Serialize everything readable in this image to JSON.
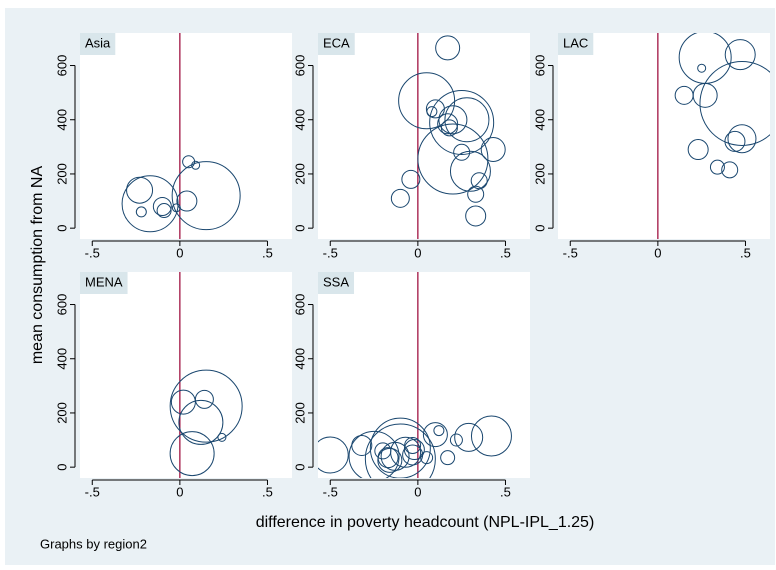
{
  "ylabel": "mean consumption from NA",
  "xlabel": "difference in poverty headcount (NPL-IPL_1.25)",
  "note": "Graphs by region2",
  "chart_data": [
    {
      "type": "scatter",
      "title": "Asia",
      "x": [
        -0.23,
        -0.22,
        -0.1,
        -0.09,
        -0.17,
        -0.02,
        0.04,
        0.15,
        0.05,
        0.09
      ],
      "y": [
        140,
        60,
        80,
        65,
        90,
        75,
        100,
        120,
        245,
        232
      ],
      "sizes": [
        169,
        25,
        81,
        49,
        784,
        16,
        100,
        1156,
        36,
        16
      ],
      "color": "#1a476f",
      "xline": 0,
      "xline_color": "#990033",
      "xlim": [
        -0.57,
        0.64
      ],
      "ylim": [
        -40,
        720
      ],
      "xticks": [
        {
          "value": -0.5,
          "label": "-.5"
        },
        0,
        {
          "value": 0.5,
          "label": ".5"
        }
      ],
      "yticks": [
        0,
        200,
        400,
        600
      ]
    },
    {
      "type": "scatter",
      "title": "ECA",
      "x": [
        0.05,
        0.17,
        0.1,
        0.08,
        0.17,
        0.18,
        0.2,
        0.25,
        0.28,
        0.2,
        0.25,
        0.3,
        0.43,
        0.35,
        0.33,
        0.33,
        -0.04,
        -0.1
      ],
      "y": [
        470,
        665,
        440,
        430,
        385,
        370,
        400,
        390,
        400,
        255,
        280,
        210,
        290,
        175,
        125,
        45,
        180,
        110
      ],
      "sizes": [
        784,
        144,
        81,
        25,
        100,
        64,
        196,
        1024,
        484,
        1225,
        64,
        400,
        144,
        64,
        64,
        100,
        81,
        81
      ],
      "color": "#1a476f",
      "xline": 0,
      "xline_color": "#990033",
      "xlim": [
        -0.57,
        0.64
      ],
      "ylim": [
        -40,
        720
      ],
      "xticks": [
        {
          "value": -0.5,
          "label": "-.5"
        },
        0,
        {
          "value": 0.5,
          "label": ".5"
        }
      ],
      "yticks": [
        0,
        200,
        400,
        600
      ]
    },
    {
      "type": "scatter",
      "title": "LAC",
      "x": [
        0.27,
        0.47,
        0.25,
        0.15,
        0.27,
        0.48,
        0.48,
        0.44,
        0.23,
        0.34,
        0.41
      ],
      "y": [
        630,
        640,
        590,
        490,
        490,
        460,
        330,
        320,
        290,
        225,
        215
      ],
      "sizes": [
        676,
        225,
        16,
        81,
        144,
        1764,
        196,
        100,
        100,
        49,
        64
      ],
      "color": "#1a476f",
      "xline": 0,
      "xline_color": "#990033",
      "xlim": [
        -0.57,
        0.64
      ],
      "ylim": [
        -40,
        720
      ],
      "xticks": [
        {
          "value": -0.5,
          "label": "-.5"
        },
        0,
        {
          "value": 0.5,
          "label": ".5"
        }
      ],
      "yticks": [
        0,
        200,
        400,
        600
      ]
    },
    {
      "type": "scatter",
      "title": "MENA",
      "x": [
        0.02,
        0.14,
        0.15,
        0.12,
        0.07,
        0.24
      ],
      "y": [
        240,
        250,
        225,
        165,
        50,
        110
      ],
      "sizes": [
        144,
        81,
        1296,
        484,
        484,
        16
      ],
      "color": "#1a476f",
      "xline": 0,
      "xline_color": "#990033",
      "xlim": [
        -0.57,
        0.64
      ],
      "ylim": [
        -40,
        720
      ],
      "xticks": [
        {
          "value": -0.5,
          "label": "-.5"
        },
        0,
        {
          "value": 0.5,
          "label": ".5"
        }
      ],
      "yticks": [
        0,
        200,
        400,
        600
      ]
    },
    {
      "type": "scatter",
      "title": "SSA",
      "x": [
        -0.5,
        -0.32,
        -0.2,
        -0.17,
        -0.16,
        -0.13,
        -0.1,
        -0.1,
        -0.07,
        -0.03,
        -0.02,
        0.05,
        0.1,
        0.12,
        0.17,
        0.22,
        0.29,
        0.42,
        -0.25,
        -0.03
      ],
      "y": [
        45,
        80,
        60,
        35,
        25,
        40,
        30,
        70,
        55,
        45,
        65,
        35,
        120,
        135,
        35,
        100,
        110,
        115,
        40,
        80
      ],
      "sizes": [
        324,
        100,
        64,
        100,
        144,
        196,
        1225,
        900,
        225,
        100,
        100,
        36,
        144,
        25,
        49,
        36,
        196,
        400,
        625,
        64
      ],
      "color": "#1a476f",
      "xline": 0,
      "xline_color": "#990033",
      "xlim": [
        -0.57,
        0.64
      ],
      "ylim": [
        -40,
        720
      ],
      "xticks": [
        {
          "value": -0.5,
          "label": "-.5"
        },
        0,
        {
          "value": 0.5,
          "label": ".5"
        }
      ],
      "yticks": [
        0,
        200,
        400,
        600
      ]
    }
  ]
}
